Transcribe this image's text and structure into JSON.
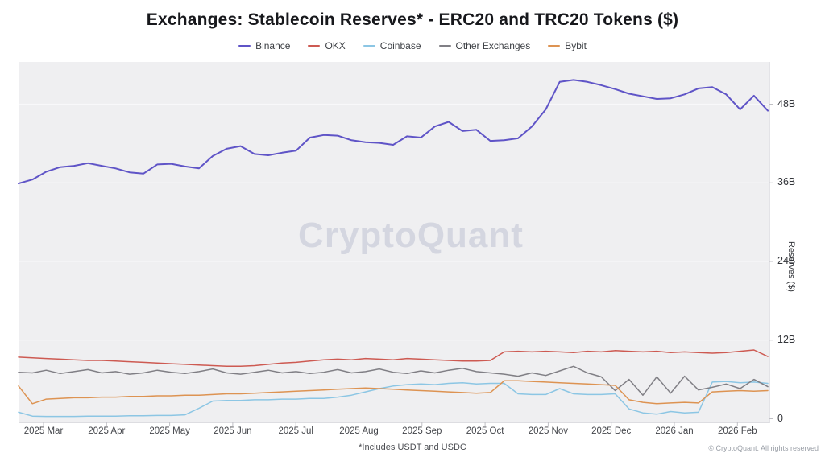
{
  "title": "Exchanges: Stablecoin Reserves* - ERC20 and TRC20 Tokens ($)",
  "footnote": "*Includes USDT and USDC",
  "copyright": "© CryptoQuant. All rights reserved",
  "watermark": "CryptoQuant",
  "colors": {
    "binance": "#5f54c7",
    "okx": "#cd5a52",
    "coinbase": "#8cc6e4",
    "other": "#807f85",
    "bybit": "#dd9352",
    "plot_background": "#efeff1",
    "gridline": "#f8f8fa",
    "title_text": "#17181c"
  },
  "chart_data": {
    "type": "line",
    "title": "Exchanges: Stablecoin Reserves* - ERC20 and TRC20 Tokens ($)",
    "xlabel": "",
    "ylabel": "Reserves ($)",
    "ylim": [
      0,
      54.4
    ],
    "grid": "horizontal",
    "legend_position": "top-center",
    "x_tick_labels": [
      "2025 Mar",
      "2025 Apr",
      "2025 May",
      "2025 Jun",
      "2025 Jul",
      "2025 Aug",
      "2025 Sep",
      "2025 Oct",
      "2025 Nov",
      "2025 Dec",
      "2026 Jan",
      "2026 Feb"
    ],
    "y_ticks": [
      {
        "value": 0,
        "label": "0"
      },
      {
        "value": 12,
        "label": "12B"
      },
      {
        "value": 24,
        "label": "24B"
      },
      {
        "value": 36,
        "label": "36B"
      },
      {
        "value": 48,
        "label": "48B"
      }
    ],
    "x_range_note": "weekly samples from 2025-02-20 to 2026-02-13, values in billions USD",
    "series": [
      {
        "name": "Binance",
        "color_key": "binance",
        "width": 2,
        "values": [
          35.9,
          36.5,
          37.7,
          38.4,
          38.6,
          39.0,
          38.6,
          38.2,
          37.6,
          37.4,
          38.8,
          38.9,
          38.5,
          38.2,
          40.1,
          41.2,
          41.6,
          40.4,
          40.2,
          40.6,
          40.9,
          42.9,
          43.3,
          43.2,
          42.5,
          42.2,
          42.1,
          41.8,
          43.1,
          42.9,
          44.6,
          45.3,
          43.9,
          44.1,
          42.4,
          42.5,
          42.8,
          44.6,
          47.2,
          51.4,
          51.7,
          51.4,
          50.9,
          50.3,
          49.6,
          49.2,
          48.8,
          48.9,
          49.5,
          50.4,
          50.6,
          49.5,
          47.2,
          49.3,
          47.0
        ]
      },
      {
        "name": "OKX",
        "color_key": "okx",
        "width": 1.5,
        "values": [
          9.4,
          9.3,
          9.2,
          9.1,
          9.0,
          8.9,
          8.9,
          8.8,
          8.7,
          8.6,
          8.5,
          8.4,
          8.3,
          8.2,
          8.1,
          8.0,
          8.0,
          8.1,
          8.3,
          8.5,
          8.6,
          8.8,
          9.0,
          9.1,
          9.0,
          9.2,
          9.1,
          9.0,
          9.2,
          9.1,
          9.0,
          8.9,
          8.8,
          8.8,
          8.9,
          10.2,
          10.3,
          10.2,
          10.3,
          10.2,
          10.1,
          10.3,
          10.2,
          10.4,
          10.3,
          10.2,
          10.3,
          10.1,
          10.2,
          10.1,
          10.0,
          10.1,
          10.3,
          10.5,
          9.5
        ]
      },
      {
        "name": "Coinbase",
        "color_key": "coinbase",
        "width": 1.5,
        "values": [
          1.0,
          0.4,
          0.35,
          0.35,
          0.35,
          0.4,
          0.4,
          0.4,
          0.45,
          0.45,
          0.5,
          0.5,
          0.6,
          1.6,
          2.7,
          2.8,
          2.8,
          2.9,
          2.9,
          3.0,
          3.0,
          3.1,
          3.1,
          3.3,
          3.6,
          4.1,
          4.6,
          5.0,
          5.2,
          5.3,
          5.2,
          5.4,
          5.5,
          5.3,
          5.4,
          5.4,
          3.8,
          3.7,
          3.7,
          4.6,
          3.8,
          3.7,
          3.7,
          3.8,
          1.5,
          0.9,
          0.7,
          1.1,
          0.9,
          1.0,
          5.6,
          5.7,
          5.5,
          5.6,
          5.4
        ]
      },
      {
        "name": "Other Exchanges",
        "color_key": "other",
        "width": 1.5,
        "values": [
          7.1,
          7.0,
          7.4,
          6.9,
          7.2,
          7.5,
          7.0,
          7.2,
          6.8,
          7.0,
          7.4,
          7.1,
          6.9,
          7.2,
          7.6,
          7.0,
          6.8,
          7.1,
          7.4,
          7.0,
          7.2,
          6.9,
          7.1,
          7.5,
          7.0,
          7.2,
          7.6,
          7.1,
          6.9,
          7.3,
          7.0,
          7.4,
          7.7,
          7.2,
          7.0,
          6.8,
          6.5,
          7.0,
          6.6,
          7.3,
          8.0,
          7.0,
          6.4,
          4.3,
          6.0,
          3.6,
          6.4,
          3.9,
          6.5,
          4.4,
          4.8,
          5.3,
          4.6,
          6.0,
          4.9
        ]
      },
      {
        "name": "Bybit",
        "color_key": "bybit",
        "width": 1.5,
        "values": [
          5.0,
          2.3,
          3.0,
          3.1,
          3.2,
          3.2,
          3.3,
          3.3,
          3.4,
          3.4,
          3.5,
          3.5,
          3.6,
          3.6,
          3.7,
          3.8,
          3.8,
          3.9,
          4.0,
          4.1,
          4.2,
          4.3,
          4.4,
          4.5,
          4.6,
          4.7,
          4.6,
          4.5,
          4.4,
          4.3,
          4.2,
          4.1,
          4.0,
          3.9,
          4.0,
          5.8,
          5.8,
          5.7,
          5.6,
          5.5,
          5.4,
          5.3,
          5.2,
          5.1,
          2.9,
          2.5,
          2.3,
          2.4,
          2.5,
          2.4,
          4.1,
          4.2,
          4.3,
          4.2,
          4.3
        ]
      }
    ]
  }
}
